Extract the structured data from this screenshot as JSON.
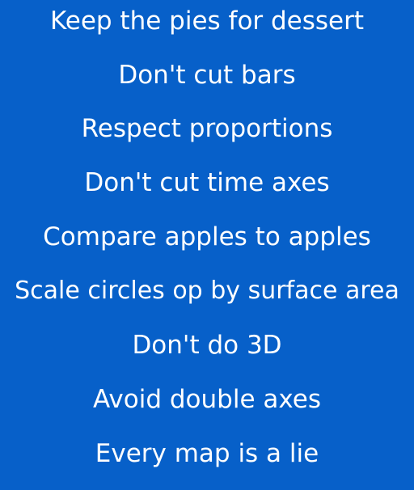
{
  "background_color": "#0760c9",
  "text_color": "#ffffff",
  "rules": [
    "Keep the pies for dessert",
    "Don't cut bars",
    "Respect proportions",
    "Don't cut time axes",
    "Compare apples to apples",
    "Scale circles op by surface area",
    "Don't do 3D",
    "Avoid double axes",
    "Every map is a lie"
  ]
}
